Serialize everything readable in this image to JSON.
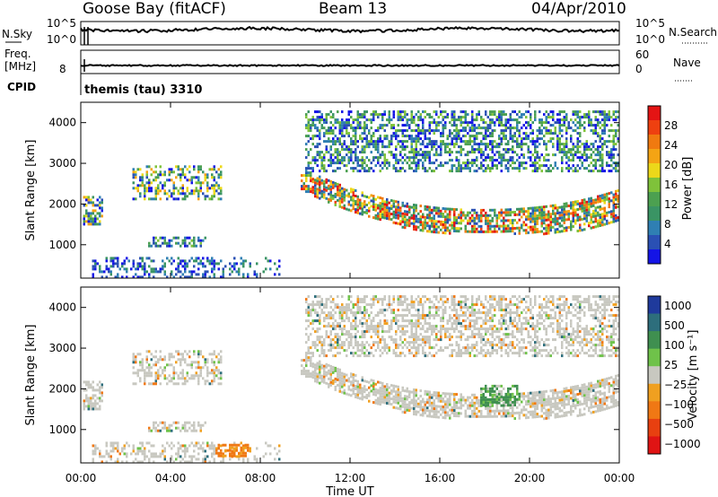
{
  "header": {
    "station": "Goose Bay (fitACF)",
    "beam": "Beam 13",
    "date": "04/Apr/2010"
  },
  "noise_panel": {
    "left_label": "N.Sky",
    "left_ticks": [
      "10^5",
      "10^0"
    ],
    "right_ticks": [
      "10^5",
      "10^0"
    ],
    "right_label": "N.Search",
    "series": [
      {
        "name": "N.Sky",
        "style": "solid"
      },
      {
        "name": "N.Search",
        "style": "dotted"
      }
    ]
  },
  "freq_panel": {
    "left_label_1": "Freq.",
    "left_label_2": "[MHz]",
    "left_tick": "8",
    "right_ticks": [
      "60",
      "0"
    ],
    "right_label": "Nave",
    "series": [
      {
        "name": "Freq.",
        "style": "solid"
      },
      {
        "name": "Nave",
        "style": "dotted"
      }
    ]
  },
  "cpid": {
    "label": "CPID",
    "value": "themis (tau) 3310"
  },
  "chart_data": [
    {
      "type": "heatmap",
      "variable": "Power",
      "ylabel": "Slant Range [km]",
      "ylim": [
        180,
        4500
      ],
      "y_ticks": [
        "1000",
        "2000",
        "3000",
        "4000"
      ],
      "xlim_hours": [
        0,
        24
      ],
      "colorbar": {
        "label": "Power [dB]",
        "ticks": [
          "4",
          "8",
          "12",
          "16",
          "20",
          "24",
          "28"
        ],
        "colors": [
          "#1414e6",
          "#2a50b4",
          "#2f7fb3",
          "#3a9464",
          "#4ca050",
          "#7fc23a",
          "#ecd81a",
          "#f4a414",
          "#f07a10",
          "#ee4010",
          "#e41414"
        ]
      },
      "scatter_regions": [
        {
          "t": [
            0.1,
            1.0
          ],
          "r": [
            1500,
            2200
          ],
          "level": "medium"
        },
        {
          "t": [
            2.3,
            6.2
          ],
          "r": [
            2100,
            2950
          ],
          "level": "medium"
        },
        {
          "t": [
            3.0,
            5.6
          ],
          "r": [
            1000,
            1200
          ],
          "level": "low-medium"
        },
        {
          "t": [
            0.5,
            9.0
          ],
          "r": [
            180,
            700
          ],
          "level": "low"
        },
        {
          "t": [
            9.8,
            24.0
          ],
          "r": [
            1300,
            2500
          ],
          "level": "high",
          "shape": "arc"
        },
        {
          "t": [
            10.0,
            24.0
          ],
          "r": [
            2800,
            4300
          ],
          "level": "low-medium"
        }
      ]
    },
    {
      "type": "heatmap",
      "variable": "Velocity",
      "ylabel": "Slant Range [km]",
      "ylim": [
        180,
        4500
      ],
      "y_ticks": [
        "1000",
        "2000",
        "3000",
        "4000"
      ],
      "x_ticks": [
        "00:00",
        "04:00",
        "08:00",
        "12:00",
        "16:00",
        "20:00",
        "00:00"
      ],
      "xlabel": "Time UT",
      "colorbar": {
        "label": "Velocity [m s⁻¹]",
        "ticks": [
          "1000",
          "500",
          "100",
          "25",
          "−25",
          "−100",
          "−500",
          "−1000"
        ],
        "colors": [
          "#1f3a9c",
          "#2d6e7c",
          "#3f8f50",
          "#6fc24a",
          "#c8c8c0",
          "#f0a020",
          "#f07814",
          "#e84010",
          "#e01414"
        ]
      },
      "scatter_regions": [
        {
          "t": [
            6.0,
            7.5
          ],
          "r": [
            350,
            650
          ],
          "velocity": "-500"
        },
        {
          "t": [
            17.8,
            19.5
          ],
          "r": [
            1600,
            2100
          ],
          "velocity": "100"
        },
        {
          "t": [
            9.8,
            24.0
          ],
          "r": [
            1300,
            2500
          ],
          "velocity": "-25 to 25"
        }
      ]
    }
  ]
}
